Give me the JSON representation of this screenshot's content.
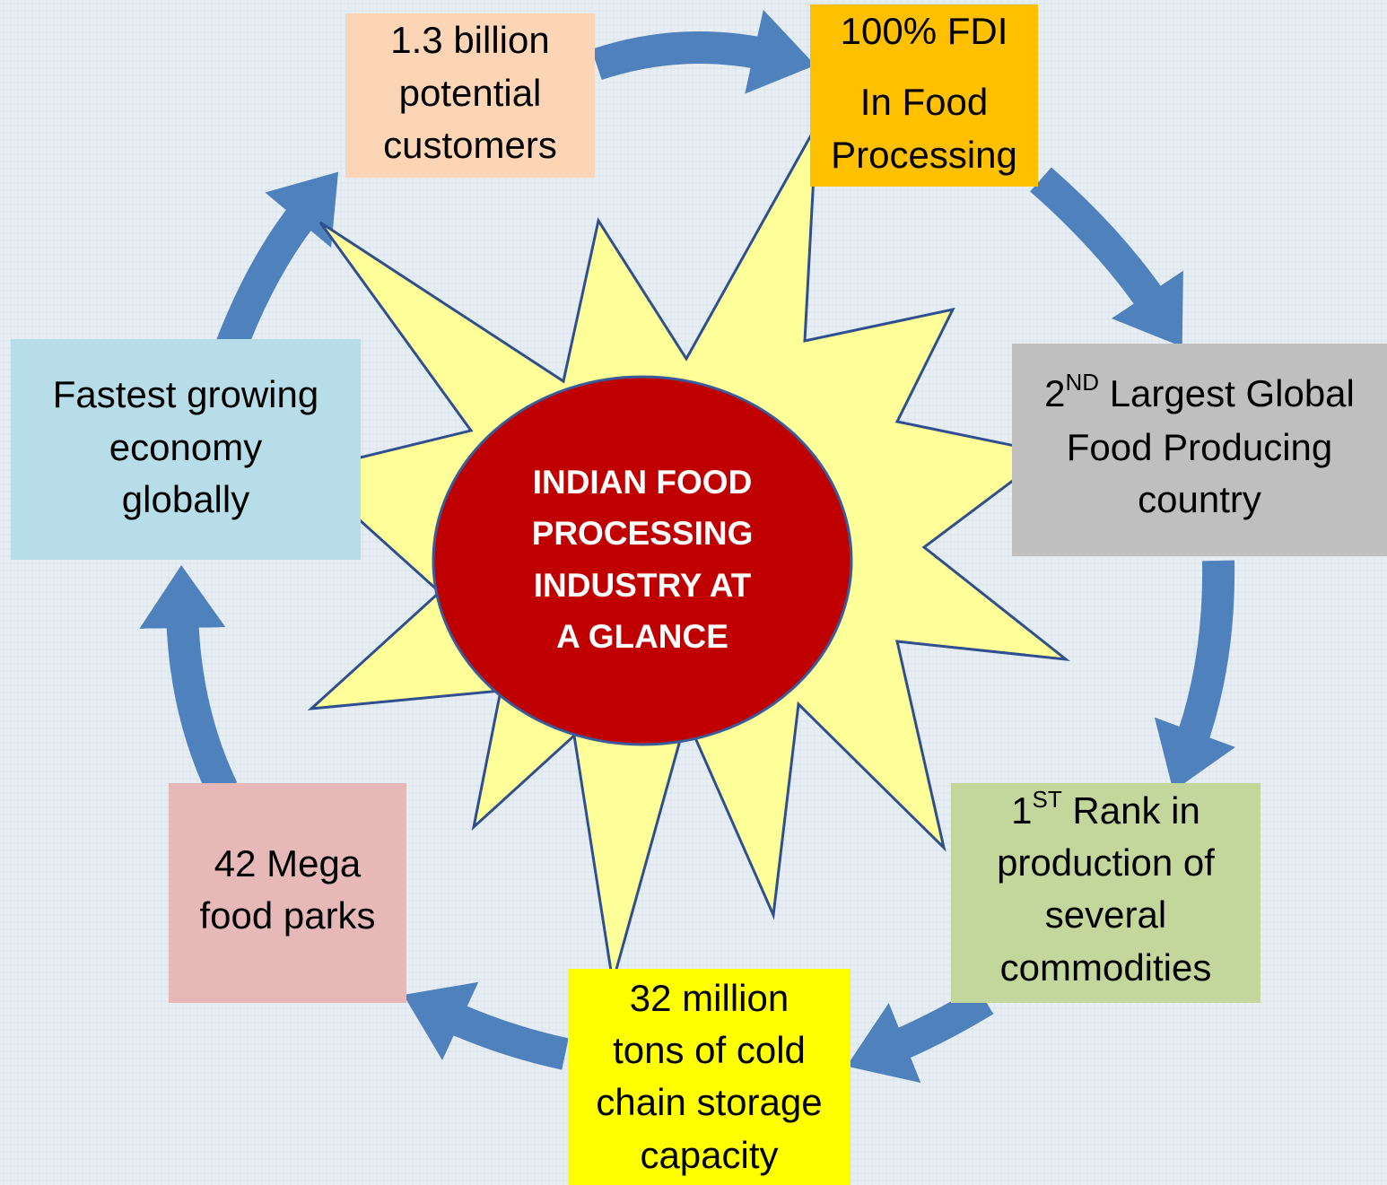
{
  "center": {
    "lines": [
      "INDIAN FOOD",
      "PROCESSING",
      "INDUSTRY AT",
      "A GLANCE"
    ]
  },
  "nodes": [
    {
      "lines": [
        "1.3 billion",
        "potential",
        "customers"
      ]
    },
    {
      "lines": [
        "100% FDI",
        "In Food",
        "Processing"
      ]
    },
    {
      "lines": [
        {
          "base": "2",
          "sup": "ND",
          "rest": " Largest Global"
        },
        "Food Producing",
        "country"
      ]
    },
    {
      "lines": [
        {
          "base": "1",
          "sup": "ST",
          "rest": " Rank in"
        },
        "production of",
        "several",
        "commodities"
      ]
    },
    {
      "lines": [
        "32 million",
        "tons of cold",
        "chain storage",
        "capacity"
      ]
    },
    {
      "lines": [
        "42 Mega",
        "food parks"
      ]
    },
    {
      "lines": [
        "Fastest growing",
        "economy",
        "globally"
      ]
    }
  ]
}
